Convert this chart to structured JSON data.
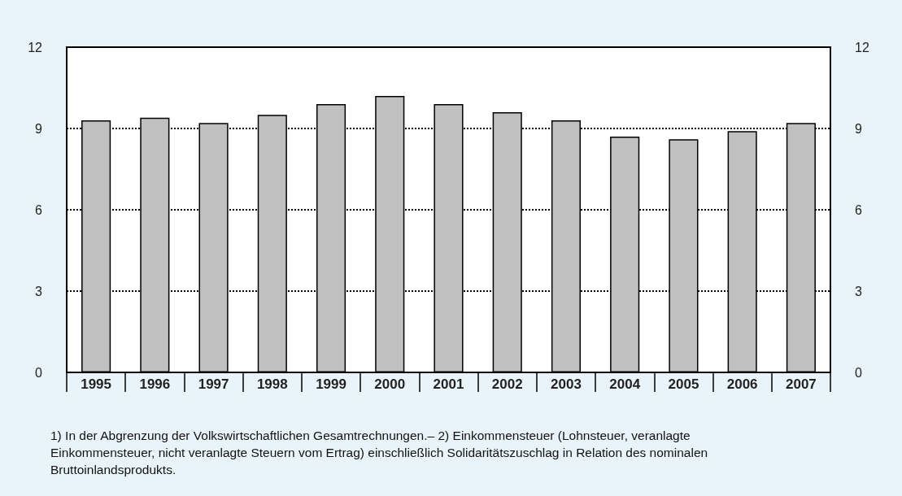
{
  "chart_data": {
    "type": "bar",
    "categories": [
      "1995",
      "1996",
      "1997",
      "1998",
      "1999",
      "2000",
      "2001",
      "2002",
      "2003",
      "2004",
      "2005",
      "2006",
      "2007"
    ],
    "series": [
      {
        "color": "#c0c0c0",
        "values": [
          9.3,
          9.4,
          9.2,
          9.5,
          9.9,
          10.2,
          9.9,
          9.6,
          9.3,
          8.7,
          8.6,
          8.9,
          9.2
        ]
      }
    ],
    "ylim": [
      0,
      12
    ],
    "yticks": [
      0,
      3,
      6,
      9,
      12
    ],
    "y2lim": [
      0,
      12
    ],
    "y2ticks": [
      0,
      3,
      6,
      9,
      12
    ],
    "grid": "y",
    "annotations": [
      "1) In der Abgrenzung der Volkswirtschaftlichen Gesamtrechnungen.– 2) Einkommensteuer (Lohnsteuer, veranlagte Einkommensteuer, nicht veranlagte Steuern vom Ertrag) einschließlich Solidaritätszuschlag in Relation des nominalen Bruttoinlandsprodukts."
    ]
  }
}
